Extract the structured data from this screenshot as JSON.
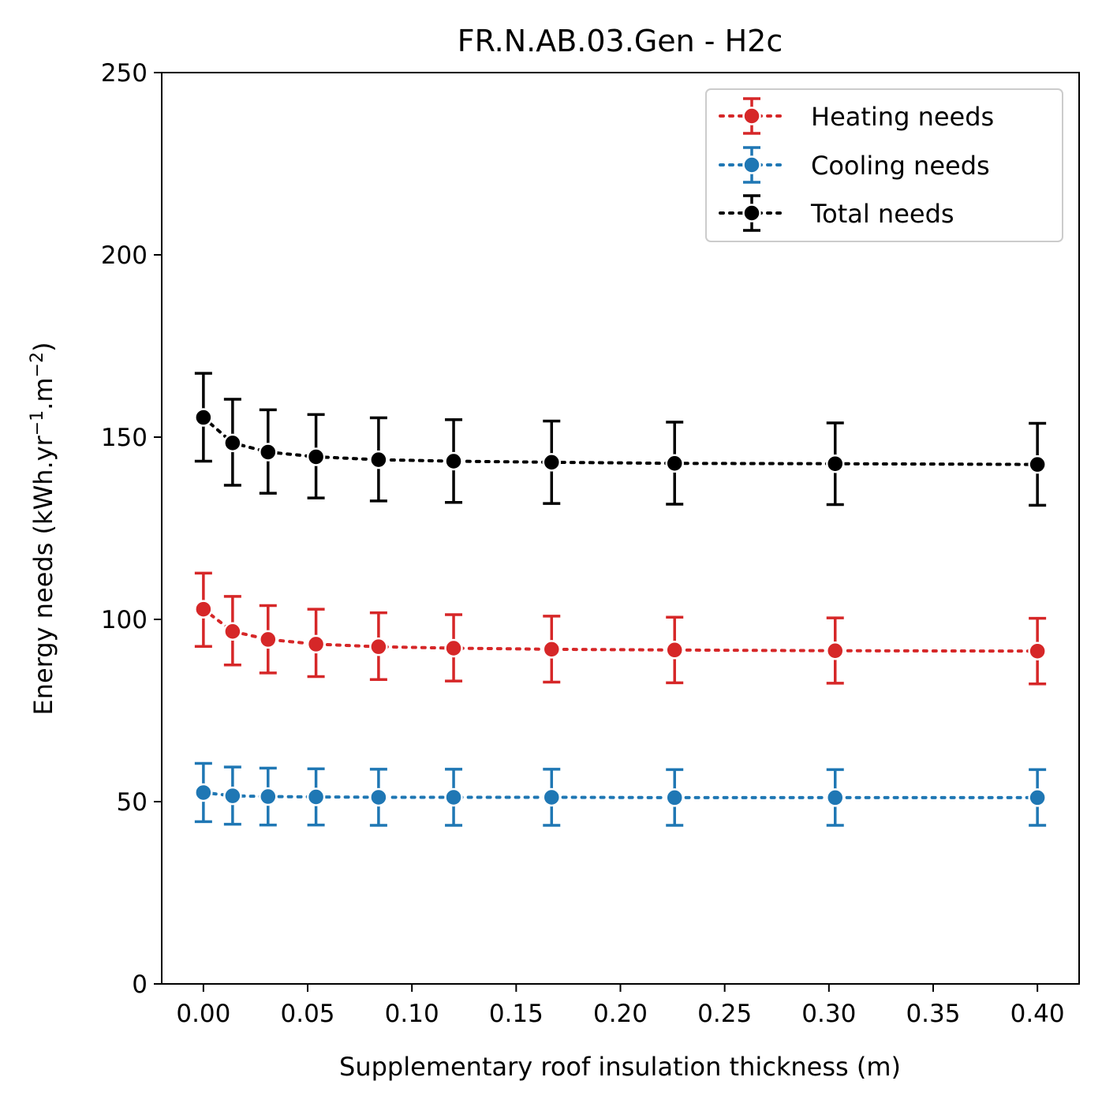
{
  "chart_data": {
    "type": "errorbar-line",
    "title": "FR.N.AB.03.Gen - H2c",
    "xlabel": "Supplementary roof insulation thickness (m)",
    "ylabel_main": "Energy needs (kWh.yr",
    "ylabel_sup1": "−1",
    "ylabel_mid": ".m",
    "ylabel_sup2": "−2",
    "ylabel_end": ")",
    "xlim": [
      -0.02,
      0.42
    ],
    "ylim": [
      0,
      250
    ],
    "xticks": [
      0.0,
      0.05,
      0.1,
      0.15,
      0.2,
      0.25,
      0.3,
      0.35,
      0.4
    ],
    "xtick_labels": [
      "0.00",
      "0.05",
      "0.10",
      "0.15",
      "0.20",
      "0.25",
      "0.30",
      "0.35",
      "0.40"
    ],
    "yticks": [
      0,
      50,
      100,
      150,
      200,
      250
    ],
    "ytick_labels": [
      "0",
      "50",
      "100",
      "150",
      "200",
      "250"
    ],
    "grid": false,
    "legend_position": "top-right",
    "x": [
      0.0,
      0.014,
      0.031,
      0.054,
      0.084,
      0.12,
      0.167,
      0.226,
      0.303,
      0.4
    ],
    "series": [
      {
        "name": "Heating needs",
        "color": "#d62728",
        "y": [
          102.8,
          96.7,
          94.5,
          93.2,
          92.5,
          92.1,
          91.8,
          91.6,
          91.4,
          91.3
        ],
        "lo": [
          92.6,
          87.5,
          85.3,
          84.3,
          83.5,
          83.1,
          82.8,
          82.6,
          82.5,
          82.3
        ],
        "hi": [
          112.7,
          106.3,
          103.8,
          102.8,
          101.8,
          101.3,
          100.9,
          100.6,
          100.4,
          100.3
        ]
      },
      {
        "name": "Cooling needs",
        "color": "#1f77b4",
        "y": [
          52.5,
          51.6,
          51.4,
          51.3,
          51.2,
          51.2,
          51.2,
          51.1,
          51.1,
          51.1
        ],
        "lo": [
          44.5,
          43.8,
          43.6,
          43.6,
          43.5,
          43.5,
          43.5,
          43.5,
          43.5,
          43.5
        ],
        "hi": [
          60.5,
          59.5,
          59.2,
          59.0,
          58.9,
          58.9,
          58.9,
          58.8,
          58.8,
          58.8
        ]
      },
      {
        "name": "Total needs",
        "color": "#000000",
        "y": [
          155.4,
          148.4,
          145.9,
          144.6,
          143.8,
          143.4,
          143.1,
          142.8,
          142.7,
          142.5
        ],
        "lo": [
          143.4,
          136.8,
          134.6,
          133.3,
          132.5,
          132.1,
          131.8,
          131.6,
          131.5,
          131.3
        ],
        "hi": [
          167.5,
          160.4,
          157.5,
          156.2,
          155.3,
          154.8,
          154.4,
          154.1,
          153.9,
          153.8
        ]
      }
    ]
  }
}
